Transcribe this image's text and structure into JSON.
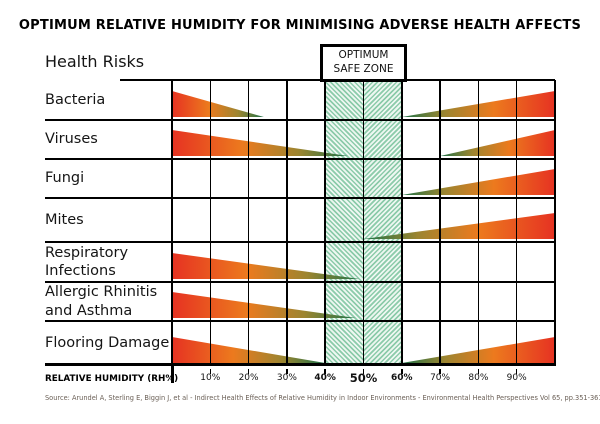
{
  "title": "OPTIMUM RELATIVE HUMIDITY FOR MINIMISING ADVERSE HEALTH AFFECTS",
  "header": {
    "health_risks_label": "Health Risks",
    "safe_zone": {
      "line1": "OPTIMUM",
      "line2": "SAFE ZONE"
    }
  },
  "source": "Source: Arundel A, Sterling E, Biggin J, et al - Indirect Health Effects of Relative Humidity in Indoor Environments - Environmental Health Perspectives Vol 65, pp.351-361 1986",
  "colors": {
    "wedge_hot": "#e63222",
    "wedge_mid": "#ec7a1e",
    "wedge_olive": "#9c8530",
    "wedge_cool": "#1d7148",
    "hatch_green": "#8ccbaa",
    "hatch_bg": "#edf7f1",
    "source_gray": "#6b6057"
  },
  "chart_data": {
    "type": "area",
    "variant": "sterling-humidity-wedge-chart",
    "title": "OPTIMUM RELATIVE HUMIDITY FOR MINIMISING ADVERSE HEALTH AFFECTS",
    "xlabel": "RELATIVE HUMIDITY (RH%)",
    "xlim": [
      0,
      100
    ],
    "optimum_safe_zone_rh": [
      40,
      60
    ],
    "grid": true,
    "x_ticks": [
      {
        "rh": 10,
        "label": "10%",
        "emphasis": "normal"
      },
      {
        "rh": 20,
        "label": "20%",
        "emphasis": "normal"
      },
      {
        "rh": 30,
        "label": "30%",
        "emphasis": "normal"
      },
      {
        "rh": 40,
        "label": "40%",
        "emphasis": "bold"
      },
      {
        "rh": 50,
        "label": "50%",
        "emphasis": "large"
      },
      {
        "rh": 60,
        "label": "60%",
        "emphasis": "bold"
      },
      {
        "rh": 70,
        "label": "70%",
        "emphasis": "normal"
      },
      {
        "rh": 80,
        "label": "80%",
        "emphasis": "normal"
      },
      {
        "rh": 90,
        "label": "90%",
        "emphasis": "normal"
      }
    ],
    "rows": [
      {
        "label": "Bacteria",
        "wedges": [
          {
            "side": "left",
            "from_rh": 0,
            "to_rh": 24
          },
          {
            "side": "right",
            "from_rh": 60,
            "to_rh": 100
          }
        ]
      },
      {
        "label": "Viruses",
        "wedges": [
          {
            "side": "left",
            "from_rh": 0,
            "to_rh": 46
          },
          {
            "side": "right",
            "from_rh": 70,
            "to_rh": 100
          }
        ]
      },
      {
        "label": "Fungi",
        "wedges": [
          {
            "side": "right",
            "from_rh": 60,
            "to_rh": 100
          }
        ]
      },
      {
        "label": "Mites",
        "wedges": [
          {
            "side": "right",
            "from_rh": 50,
            "to_rh": 100
          }
        ]
      },
      {
        "label": "Respiratory Infections",
        "wedges": [
          {
            "side": "left",
            "from_rh": 0,
            "to_rh": 49
          }
        ]
      },
      {
        "label": "Allergic Rhinitis and Asthma",
        "wedges": [
          {
            "side": "left",
            "from_rh": 0,
            "to_rh": 48
          }
        ]
      },
      {
        "label": "Flooring Damage",
        "wedges": [
          {
            "side": "left",
            "from_rh": 0,
            "to_rh": 40
          },
          {
            "side": "right",
            "from_rh": 60,
            "to_rh": 100
          }
        ]
      }
    ]
  }
}
